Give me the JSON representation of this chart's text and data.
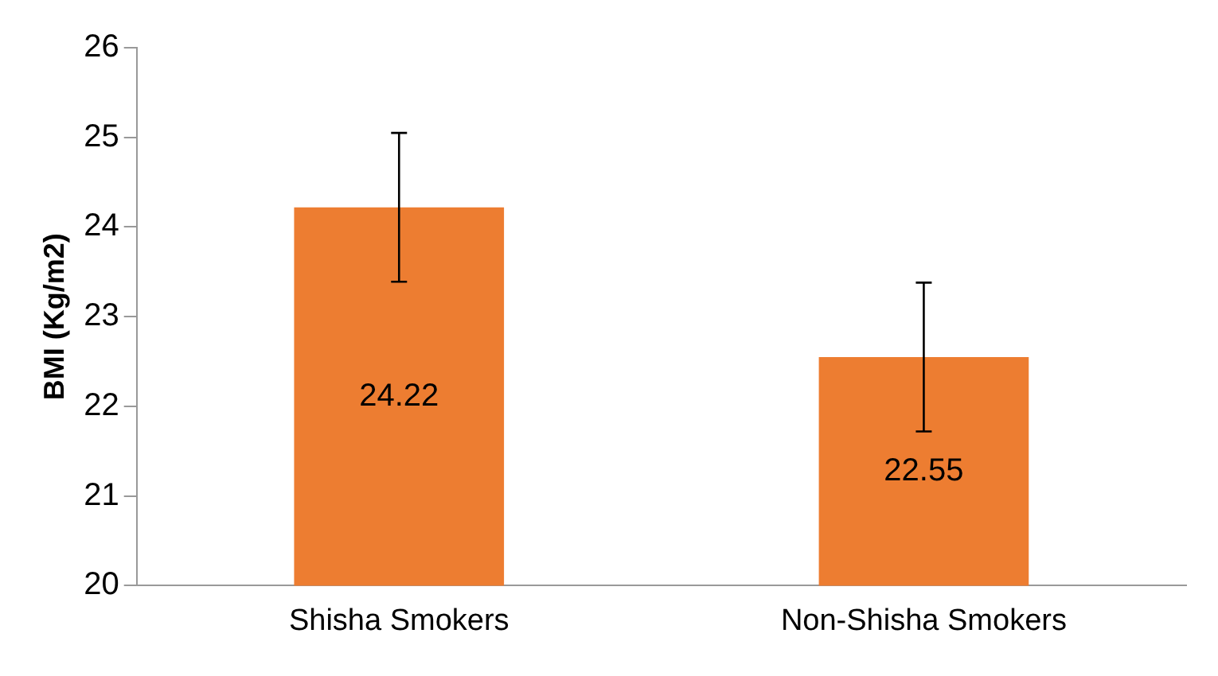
{
  "chart_data": {
    "type": "bar",
    "ylabel": "BMI (Kg/m2)",
    "categories": [
      "Shisha Smokers",
      "Non-Shisha Smokers"
    ],
    "values": [
      24.22,
      22.55
    ],
    "errors": [
      0.83,
      0.83
    ],
    "color": "#ed7d31",
    "data_labels": true,
    "ylim": [
      20,
      26
    ],
    "yticks": [
      20,
      21,
      22,
      23,
      24,
      25,
      26
    ],
    "grid": false,
    "legend": false
  }
}
